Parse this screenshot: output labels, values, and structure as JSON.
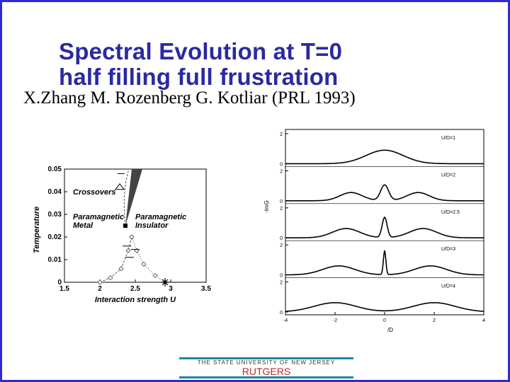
{
  "slide": {
    "title_line1": "Spectral Evolution at T=0",
    "title_line2": "half filling full frustration",
    "authors": "X.Zhang M. Rozenberg G. Kotliar (PRL 1993)"
  },
  "footer": {
    "university": "THE STATE UNIVERSITY OF NEW JERSEY",
    "name": "RUTGERS"
  },
  "colors": {
    "title": "#2a2aa0",
    "border": "#2d2bd6",
    "footer_line": "#1a8aa0",
    "footer_text": "#c0262a"
  },
  "chart_data": [
    {
      "type": "scatter",
      "xlabel": "Interaction strength U",
      "ylabel": "Temperature",
      "xlim": [
        1.5,
        3.5
      ],
      "ylim": [
        0,
        0.05
      ],
      "xticks": [
        "1.5",
        "2",
        "2.5",
        "3",
        "3.5"
      ],
      "yticks": [
        "0",
        "0.01",
        "0.02",
        "0.03",
        "0.04",
        "0.05"
      ],
      "annotations": [
        "Crossovers",
        "Paramagnetic",
        "Metal",
        "Paramagnetic",
        "Insulator"
      ],
      "critical_point": {
        "x": 2.36,
        "y": 0.025
      },
      "zero_temp_point": {
        "x": 2.92,
        "y": 0
      },
      "series": [
        {
          "points": [
            [
              2.0,
              0.0
            ],
            [
              2.15,
              0.002
            ],
            [
              2.3,
              0.006
            ],
            [
              2.4,
              0.014
            ],
            [
              2.45,
              0.02
            ]
          ]
        },
        {
          "points": [
            [
              2.92,
              0.0
            ],
            [
              2.78,
              0.003
            ],
            [
              2.62,
              0.008
            ],
            [
              2.52,
              0.014
            ],
            [
              2.45,
              0.02
            ]
          ]
        }
      ]
    },
    {
      "type": "line",
      "xlabel": "/D",
      "ylabel": "-ImG",
      "xlim": [
        -4,
        4
      ],
      "xticks": [
        "-4",
        "-2",
        "0",
        "2",
        "4"
      ],
      "yticks": [
        "0",
        "2"
      ],
      "series": [
        {
          "name": "U/D=1",
          "U": 1
        },
        {
          "name": "U/D=2",
          "U": 2
        },
        {
          "name": "U/D=2.5",
          "U": 2.5
        },
        {
          "name": "U/D=3",
          "U": 3
        },
        {
          "name": "U/D=4",
          "U": 4
        }
      ]
    }
  ]
}
